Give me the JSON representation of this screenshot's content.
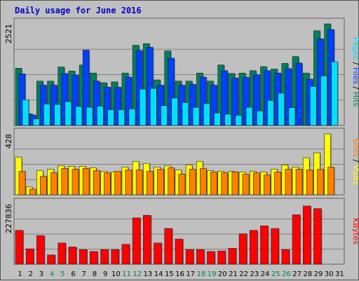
{
  "colors": {
    "background": "#c0c0c0",
    "panel": "#c0c0c0",
    "title": "#0000cc",
    "hits": "#00805c",
    "files": "#0040ff",
    "pages": "#00e0ff",
    "visits": "#ffff00",
    "sites": "#ff8000",
    "kbytes": "#ff0000",
    "weekend_label": "#00805c",
    "weekday_label": "#000000"
  },
  "chart_data": [
    {
      "type": "bar",
      "title": "Daily usage for June 2016",
      "categories": [
        "1",
        "2",
        "3",
        "4",
        "5",
        "6",
        "7",
        "8",
        "9",
        "10",
        "11",
        "12",
        "13",
        "14",
        "15",
        "16",
        "17",
        "18",
        "19",
        "20",
        "21",
        "22",
        "23",
        "24",
        "25",
        "26",
        "27",
        "28",
        "29",
        "30",
        "31"
      ],
      "weekend_days": [
        "4",
        "5",
        "11",
        "12",
        "18",
        "19",
        "25",
        "26"
      ],
      "ylim": [
        0,
        2521
      ],
      "ymax_label": "2521",
      "legend": [
        "Pages",
        "Files",
        "Hits"
      ],
      "series": [
        {
          "name": "Hits",
          "color": "#00805c",
          "values": [
            1420,
            290,
            1100,
            1100,
            1450,
            1350,
            1500,
            1300,
            1060,
            1080,
            1300,
            1990,
            2030,
            1130,
            1850,
            1100,
            1100,
            1300,
            1100,
            1500,
            1290,
            1300,
            1360,
            1460,
            1400,
            1540,
            1710,
            1300,
            2350,
            2521,
            0
          ]
        },
        {
          "name": "Files",
          "color": "#0040ff",
          "values": [
            1280,
            260,
            1000,
            1000,
            1290,
            1250,
            1870,
            1100,
            950,
            950,
            1200,
            1860,
            1940,
            1000,
            1670,
            1000,
            1020,
            1200,
            1000,
            1360,
            1180,
            1200,
            1260,
            1360,
            1300,
            1410,
            1550,
            1150,
            2150,
            2380,
            0
          ]
        },
        {
          "name": "Pages",
          "color": "#00e0ff",
          "values": [
            640,
            160,
            530,
            520,
            590,
            470,
            450,
            480,
            390,
            390,
            410,
            900,
            920,
            490,
            680,
            570,
            450,
            540,
            310,
            280,
            250,
            450,
            360,
            620,
            800,
            440,
            0,
            970,
            1230,
            1580,
            0
          ]
        }
      ]
    },
    {
      "type": "bar",
      "categories": [
        "1",
        "2",
        "3",
        "4",
        "5",
        "6",
        "7",
        "8",
        "9",
        "10",
        "11",
        "12",
        "13",
        "14",
        "15",
        "16",
        "17",
        "18",
        "19",
        "20",
        "21",
        "22",
        "23",
        "24",
        "25",
        "26",
        "27",
        "28",
        "29",
        "30",
        "31"
      ],
      "ylim": [
        0,
        428
      ],
      "ymax_label": "428",
      "legend": [
        "Sites",
        "Visits"
      ],
      "series": [
        {
          "name": "Visits",
          "color": "#ffff00",
          "values": [
            265,
            55,
            170,
            180,
            205,
            200,
            200,
            190,
            165,
            160,
            195,
            235,
            220,
            195,
            205,
            175,
            210,
            235,
            170,
            165,
            165,
            160,
            165,
            160,
            180,
            210,
            195,
            260,
            295,
            428,
            0
          ]
        },
        {
          "name": "Sites",
          "color": "#ff8000",
          "values": [
            165,
            40,
            130,
            155,
            185,
            180,
            185,
            170,
            155,
            165,
            175,
            175,
            165,
            180,
            190,
            145,
            180,
            185,
            160,
            155,
            160,
            145,
            155,
            140,
            160,
            180,
            180,
            175,
            180,
            195,
            0
          ]
        }
      ]
    },
    {
      "type": "bar",
      "categories": [
        "1",
        "2",
        "3",
        "4",
        "5",
        "6",
        "7",
        "8",
        "9",
        "10",
        "11",
        "12",
        "13",
        "14",
        "15",
        "16",
        "17",
        "18",
        "19",
        "20",
        "21",
        "22",
        "23",
        "24",
        "25",
        "26",
        "27",
        "28",
        "29",
        "30",
        "31"
      ],
      "ylim": [
        0,
        227836
      ],
      "ymax_label": "227836",
      "legend": [
        "KBytes"
      ],
      "series": [
        {
          "name": "KBytes",
          "color": "#ff0000",
          "values": [
            128000,
            58000,
            108000,
            35000,
            80000,
            65000,
            55000,
            48000,
            55000,
            55000,
            75000,
            175000,
            185000,
            80000,
            135000,
            95000,
            55000,
            55000,
            48000,
            50000,
            60000,
            115000,
            128000,
            145000,
            135000,
            55000,
            187000,
            220000,
            210000,
            0,
            0
          ]
        }
      ]
    }
  ]
}
